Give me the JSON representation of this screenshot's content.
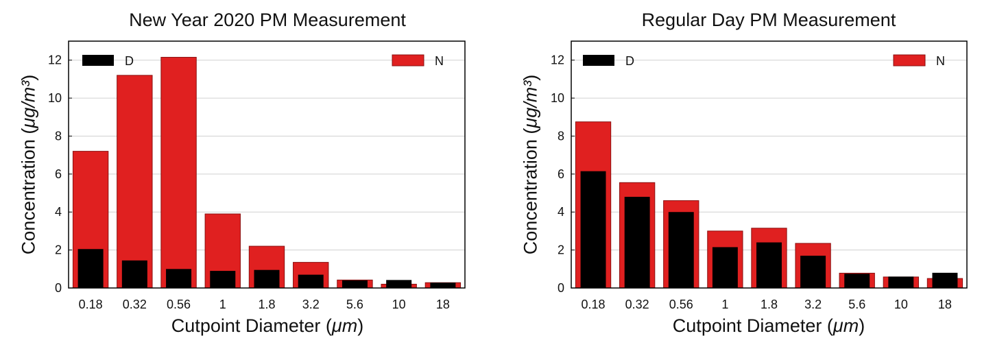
{
  "chart_data": [
    {
      "type": "bar",
      "title": "New Year 2020 PM Measurement",
      "xlabel": "Cutpoint Diameter",
      "xlabel_unit": "μm",
      "ylabel": "Concentration",
      "ylabel_unit": "μg/m³",
      "ylim": [
        0,
        13
      ],
      "yticks": [
        0,
        2,
        4,
        6,
        8,
        10,
        12
      ],
      "grid": true,
      "legend": "top",
      "categories": [
        "0.18",
        "0.32",
        "0.56",
        "1",
        "1.8",
        "3.2",
        "5.6",
        "10",
        "18"
      ],
      "series": [
        {
          "name": "N",
          "color": "#e02020",
          "values": [
            7.2,
            11.2,
            12.15,
            3.9,
            2.2,
            1.35,
            0.42,
            0.2,
            0.28
          ]
        },
        {
          "name": "D",
          "color": "#000000",
          "values": [
            2.05,
            1.45,
            1.0,
            0.9,
            0.95,
            0.7,
            0.4,
            0.42,
            0.28
          ]
        }
      ]
    },
    {
      "type": "bar",
      "title": "Regular Day PM Measurement",
      "xlabel": "Cutpoint Diameter",
      "xlabel_unit": "μm",
      "ylabel": "Concentration",
      "ylabel_unit": "μg/m³",
      "ylim": [
        0,
        13
      ],
      "yticks": [
        0,
        2,
        4,
        6,
        8,
        10,
        12
      ],
      "grid": true,
      "legend": "top",
      "categories": [
        "0.18",
        "0.32",
        "0.56",
        "1",
        "1.8",
        "3.2",
        "5.6",
        "10",
        "18"
      ],
      "series": [
        {
          "name": "N",
          "color": "#e02020",
          "values": [
            8.75,
            5.55,
            4.6,
            3.0,
            3.15,
            2.35,
            0.78,
            0.58,
            0.5
          ]
        },
        {
          "name": "D",
          "color": "#000000",
          "values": [
            6.15,
            4.8,
            4.0,
            2.15,
            2.4,
            1.7,
            0.75,
            0.6,
            0.8
          ]
        }
      ]
    }
  ]
}
